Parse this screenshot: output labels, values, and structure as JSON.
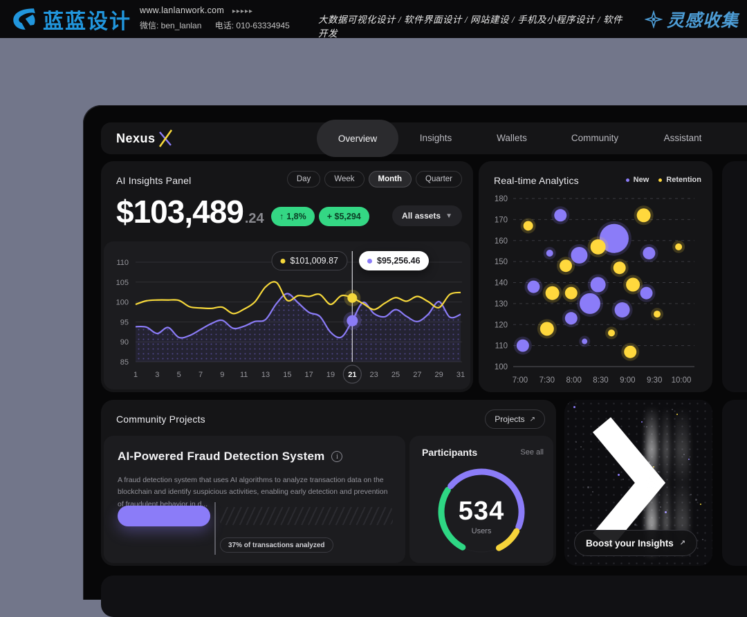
{
  "banner": {
    "logo_text": "蓝蓝设计",
    "website": "www.lanlanwork.com",
    "website_arrows": "▸▸▸▸▸",
    "wechat": "微信: ben_lanlan",
    "phone": "电话: 010-63334945",
    "services": "大数据可视化设计 / 软件界面设计 / 网站建设 / 手机及小程序设计 / 软件开发",
    "collect": "灵感收集",
    "brand_blue": "#2196dd"
  },
  "nav": {
    "logo": "Nexus",
    "tabs": [
      {
        "label": "Overview",
        "active": true
      },
      {
        "label": "Insights",
        "active": false
      },
      {
        "label": "Wallets",
        "active": false
      },
      {
        "label": "Community",
        "active": false
      },
      {
        "label": "Assistant",
        "active": false
      }
    ]
  },
  "insights_panel": {
    "title": "AI Insights Panel",
    "range_options": [
      "Day",
      "Week",
      "Month",
      "Quarter"
    ],
    "active_range": "Month",
    "value_main": "$103,489",
    "value_decimal": ".24",
    "up_arrow": "↑",
    "change_pct": "1,8%",
    "change_abs": "+ $5,294",
    "assets_dropdown": "All assets",
    "chart_data": {
      "type": "line",
      "x_range": [
        1,
        31
      ],
      "x_tick_labels": [
        "1",
        "3",
        "5",
        "7",
        "9",
        "11",
        "13",
        "15",
        "17",
        "19",
        "21",
        "23",
        "25",
        "27",
        "29",
        "31"
      ],
      "highlight_x": 21,
      "y_ticks": [
        85,
        90,
        95,
        100,
        105,
        110
      ],
      "series": [
        {
          "name": "retention",
          "color": "#f6d83b",
          "values": [
            99.4,
            100.3,
            100.5,
            100.5,
            100.4,
            98.8,
            98.5,
            98.4,
            98.7,
            97.1,
            98.2,
            100,
            103.8,
            104.9,
            100.4,
            101.6,
            101.4,
            101.9,
            99.4,
            101.6,
            101,
            99.6,
            98.1,
            99.7,
            101.1,
            100.2,
            101.4,
            100.1,
            98.6,
            101.9,
            102.4
          ]
        },
        {
          "name": "new",
          "color": "#8b7cf8",
          "area": "dotted",
          "values": [
            93.8,
            93.7,
            92.1,
            93.6,
            91.1,
            91.6,
            93.1,
            94.6,
            95.4,
            93.4,
            93.9,
            95.1,
            95.6,
            99.6,
            102.1,
            99.8,
            97.4,
            96.4,
            92.4,
            91.2,
            95.3,
            99.9,
            97.1,
            96.3,
            98.1,
            96.4,
            95.1,
            96.9,
            100.1,
            96.2,
            96.9
          ]
        }
      ],
      "tooltips": [
        {
          "label": "$101,009.87",
          "color": "#f6d83b"
        },
        {
          "label": "$95,256.46",
          "color": "#8b7cf8"
        }
      ]
    }
  },
  "analytics_panel": {
    "title": "Real-time Analytics",
    "legend": [
      {
        "label": "New",
        "color": "#8b7cf8"
      },
      {
        "label": "Retention",
        "color": "#ffd83d"
      }
    ],
    "chart_data": {
      "type": "bubble",
      "y_ticks": [
        100,
        110,
        120,
        130,
        140,
        150,
        160,
        170,
        180
      ],
      "x_tick_labels": [
        "7:00",
        "7:30",
        "8:00",
        "8:30",
        "9:00",
        "9:30",
        "10:00"
      ],
      "x_range_hours": [
        7,
        10
      ],
      "series": [
        {
          "name": "New",
          "color": "#8b7cf8",
          "points": [
            [
              7.05,
              110,
              9
            ],
            [
              7.25,
              138,
              9
            ],
            [
              7.55,
              154,
              5
            ],
            [
              7.75,
              172,
              9
            ],
            [
              7.95,
              123,
              9
            ],
            [
              8.1,
              153,
              12
            ],
            [
              8.2,
              112,
              4
            ],
            [
              8.3,
              130,
              15
            ],
            [
              8.45,
              139,
              11
            ],
            [
              8.75,
              161,
              21
            ],
            [
              8.9,
              127,
              11
            ],
            [
              9.35,
              135,
              9
            ],
            [
              9.4,
              154,
              9
            ]
          ]
        },
        {
          "name": "Retention",
          "color": "#ffd83d",
          "points": [
            [
              7.15,
              167,
              7
            ],
            [
              7.5,
              118,
              10
            ],
            [
              7.6,
              135,
              10
            ],
            [
              7.95,
              135,
              9
            ],
            [
              7.85,
              148,
              9
            ],
            [
              8.45,
              157,
              11
            ],
            [
              8.7,
              116,
              5
            ],
            [
              8.85,
              147,
              9
            ],
            [
              9.1,
              139,
              10
            ],
            [
              9.05,
              107,
              9
            ],
            [
              9.3,
              172,
              10
            ],
            [
              9.55,
              125,
              5
            ],
            [
              9.95,
              157,
              5
            ]
          ]
        }
      ]
    }
  },
  "community": {
    "title": "Community Projects",
    "projects_button": "Projects",
    "arrow": "↗",
    "project": {
      "title": "AI-Powered Fraud Detection System",
      "info_icon": "i",
      "description": "A fraud detection system that uses AI algorithms to analyze transaction data on the blockchain and identify suspicious activities, enabling early detection and prevention of fraudulent behavior in d...",
      "progress_pct": 37,
      "progress_label": "37% of transactions analyzed"
    },
    "participants": {
      "title": "Participants",
      "see_all": "See all",
      "count": "534",
      "unit": "Users",
      "gauge_colors": [
        "#2ed784",
        "#8b7cf8",
        "#f6d43a"
      ]
    }
  },
  "boost": {
    "label": "Boost your Insights",
    "arrow": "↗"
  },
  "colors": {
    "purple": "#8b7cf8",
    "yellow": "#f6d83b",
    "green": "#34d784"
  }
}
